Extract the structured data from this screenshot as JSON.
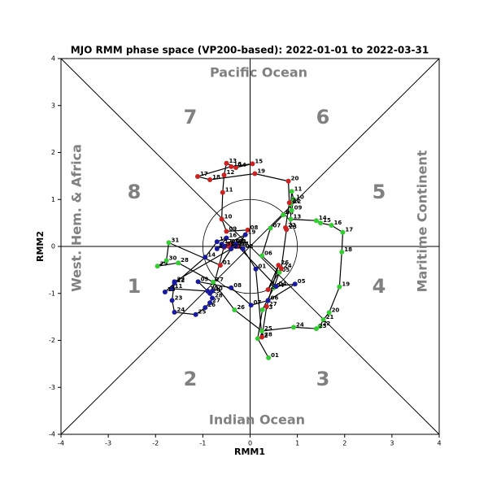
{
  "chart_data": {
    "type": "phase-trajectory",
    "title": "MJO RMM phase space (VP200-based): 2022-01-01 to 2022-03-31",
    "xlabel": "RMM1",
    "ylabel": "RMM2",
    "xlim": [
      -4,
      4
    ],
    "ylim": [
      -4,
      4
    ],
    "xticks": [
      -4,
      -3,
      -2,
      -1,
      0,
      1,
      2,
      3,
      4
    ],
    "yticks": [
      -4,
      -3,
      -2,
      -1,
      0,
      1,
      2,
      3,
      4
    ],
    "line_color": "#000000",
    "annotations": [
      "7",
      "6",
      "8",
      "5",
      "1",
      "4",
      "2",
      "3",
      "Pacific Ocean",
      "Indian Ocean",
      "West. Hem. & Africa",
      "Maritime Continent"
    ],
    "series": [
      {
        "color": "#33cc33",
        "labels": [
          "01",
          "02",
          "03",
          "04",
          "05",
          "06",
          "07",
          "08",
          "09",
          "10",
          "11",
          "12",
          "13",
          "14",
          "15",
          "16",
          "17",
          "18",
          "19",
          "20",
          "21",
          "22",
          "23",
          "24",
          "25",
          "26",
          "27",
          "28",
          "29",
          "30",
          "31"
        ],
        "x": [
          0.39,
          0.16,
          0.26,
          0.5,
          0.62,
          0.25,
          0.43,
          0.7,
          0.88,
          0.92,
          0.88,
          0.86,
          0.86,
          1.4,
          1.49,
          1.72,
          1.96,
          1.94,
          1.89,
          1.67,
          1.55,
          1.48,
          1.4,
          0.92,
          0.25,
          -0.33,
          -0.78,
          -1.52,
          -1.96,
          -1.77,
          -1.72
        ],
        "values": [
          -2.37,
          -1.96,
          -1.35,
          -0.88,
          -0.55,
          -0.2,
          0.39,
          0.67,
          0.77,
          1.0,
          1.17,
          0.9,
          0.58,
          0.55,
          0.5,
          0.45,
          0.3,
          -0.12,
          -0.86,
          -1.41,
          -1.56,
          -1.7,
          -1.75,
          -1.72,
          -1.8,
          -1.35,
          -0.76,
          -0.35,
          -0.42,
          -0.3,
          0.08
        ]
      },
      {
        "color": "#cc2222",
        "labels": [
          "01",
          "02",
          "03",
          "04",
          "05",
          "06",
          "07",
          "08",
          "09",
          "10",
          "11",
          "12",
          "13",
          "14",
          "15",
          "16",
          "17",
          "18",
          "19",
          "20",
          "21",
          "22",
          "23",
          "24",
          "25",
          "26",
          "27",
          "28"
        ],
        "x": [
          -0.63,
          -0.4,
          -0.35,
          -0.45,
          -0.55,
          -0.45,
          -0.25,
          -0.05,
          -0.5,
          -0.6,
          -0.58,
          -0.55,
          -0.5,
          -0.3,
          0.05,
          -0.4,
          -1.11,
          -0.85,
          0.1,
          0.81,
          0.83,
          0.75,
          0.77,
          0.66,
          0.38,
          0.6,
          0.35,
          0.25
        ],
        "values": [
          -0.4,
          -0.05,
          0.05,
          0.0,
          -0.02,
          0.05,
          0.0,
          0.35,
          0.32,
          0.58,
          1.15,
          1.52,
          1.77,
          1.68,
          1.76,
          1.7,
          1.49,
          1.42,
          1.55,
          1.39,
          0.93,
          0.4,
          0.36,
          -0.47,
          -0.92,
          -0.4,
          -1.28,
          -1.93
        ]
      },
      {
        "color": "#1a1aa0",
        "labels": [
          "01",
          "02",
          "03",
          "04",
          "05",
          "06",
          "07",
          "08",
          "09",
          "10",
          "11",
          "12",
          "13",
          "14",
          "15",
          "16",
          "17",
          "18",
          "19",
          "20",
          "21",
          "22",
          "23",
          "24",
          "25",
          "26",
          "27",
          "28",
          "29",
          "30",
          "31"
        ],
        "x": [
          0.12,
          -0.15,
          -0.3,
          0.55,
          0.95,
          0.38,
          0.02,
          -0.4,
          -1.1,
          -0.9,
          -1.65,
          -1.6,
          -1.8,
          -0.95,
          -0.7,
          -0.5,
          -0.6,
          -0.7,
          -0.1,
          -0.3,
          -0.4,
          -1.6,
          -1.65,
          -1.6,
          -1.15,
          -0.95,
          -0.85,
          -0.8,
          -0.85,
          -0.8,
          -0.55
        ],
        "values": [
          -0.48,
          -0.05,
          0.05,
          -0.85,
          -0.8,
          -1.15,
          -1.25,
          -0.88,
          -0.75,
          -0.95,
          -0.9,
          -0.78,
          -0.97,
          -0.23,
          0.1,
          0.18,
          0.05,
          -0.05,
          0.25,
          0.0,
          -0.05,
          -0.75,
          -1.15,
          -1.4,
          -1.45,
          -1.3,
          -1.2,
          -1.1,
          -1.0,
          -0.95,
          0.0
        ]
      }
    ]
  }
}
